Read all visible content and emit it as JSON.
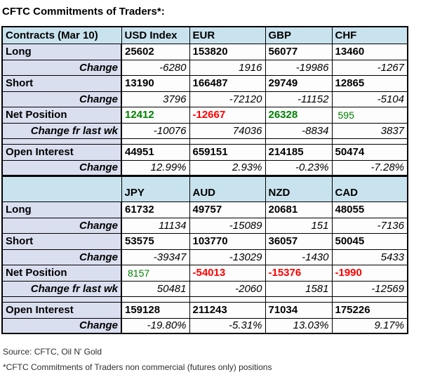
{
  "chart_data": {
    "type": "table",
    "title": "CFTC Commitments of Traders*:",
    "colors": {
      "positive": "#008000",
      "negative": "#ff0000",
      "header_bg": "#c9e3ee",
      "label_bg": "#dadff0",
      "cell_bg": "#fdfdfd"
    },
    "sections": [
      {
        "header": {
          "label": "Contracts (Mar 10)",
          "columns": [
            "USD Index",
            "EUR",
            "GBP",
            "CHF"
          ]
        },
        "rows": [
          {
            "label": "Long",
            "type": "data",
            "values": [
              "25602",
              "153820",
              "56077",
              "13460"
            ]
          },
          {
            "label": "Change",
            "type": "change",
            "values": [
              "-6280",
              "1916",
              "-19986",
              "-1267"
            ]
          },
          {
            "label": "Short",
            "type": "data",
            "values": [
              "13190",
              "166487",
              "29749",
              "12865"
            ]
          },
          {
            "label": "Change",
            "type": "change",
            "values": [
              "3796",
              "-72120",
              "-11152",
              "-5104"
            ]
          },
          {
            "label": "Net Position",
            "type": "net",
            "values": [
              {
                "text": "12412",
                "color": "green",
                "bold": true
              },
              {
                "text": "-12667",
                "color": "red",
                "bold": true
              },
              {
                "text": "26328",
                "color": "green",
                "bold": true
              },
              {
                "text": "595",
                "color": "green",
                "bold": false
              }
            ]
          },
          {
            "label": "Change fr last wk",
            "type": "change",
            "values": [
              "-10076",
              "74036",
              "-8834",
              "3837"
            ]
          },
          {
            "label": "",
            "type": "spacer",
            "values": [
              "",
              "",
              "",
              ""
            ]
          },
          {
            "label": "Open Interest",
            "type": "data",
            "values": [
              "44951",
              "659151",
              "214185",
              "50474"
            ]
          },
          {
            "label": "Change",
            "type": "change",
            "values": [
              "12.99%",
              "2.93%",
              "-0.23%",
              "-7.28%"
            ]
          }
        ]
      },
      {
        "header": {
          "label": "",
          "columns": [
            "JPY",
            "AUD",
            "NZD",
            "CAD"
          ]
        },
        "rows": [
          {
            "label": "Long",
            "type": "data",
            "values": [
              "61732",
              "49757",
              "20681",
              "48055"
            ]
          },
          {
            "label": "Change",
            "type": "change",
            "values": [
              "11134",
              "-15089",
              "151",
              "-7136"
            ]
          },
          {
            "label": "Short",
            "type": "data",
            "values": [
              "53575",
              "103770",
              "36057",
              "50045"
            ]
          },
          {
            "label": "Change",
            "type": "change",
            "values": [
              "-39347",
              "-13029",
              "-1430",
              "5433"
            ]
          },
          {
            "label": "Net Position",
            "type": "net",
            "values": [
              {
                "text": "8157",
                "color": "green",
                "bold": false
              },
              {
                "text": "-54013",
                "color": "red",
                "bold": true
              },
              {
                "text": "-15376",
                "color": "red",
                "bold": true
              },
              {
                "text": "-1990",
                "color": "red",
                "bold": true
              }
            ]
          },
          {
            "label": "Change fr last wk",
            "type": "change",
            "values": [
              "50481",
              "-2060",
              "1581",
              "-12569"
            ]
          },
          {
            "label": "",
            "type": "spacer",
            "values": [
              "",
              "",
              "",
              ""
            ]
          },
          {
            "label": "Open Interest",
            "type": "data",
            "values": [
              "159128",
              "211243",
              "71034",
              "175226"
            ]
          },
          {
            "label": "Change",
            "type": "change",
            "values": [
              "-19.80%",
              "-5.31%",
              "13.03%",
              "9.17%"
            ]
          }
        ]
      }
    ],
    "footer": {
      "source": "Source: CFTC, Oil N' Gold",
      "note": "*CFTC Commitments of Traders non commercial (futures only) positions"
    }
  }
}
